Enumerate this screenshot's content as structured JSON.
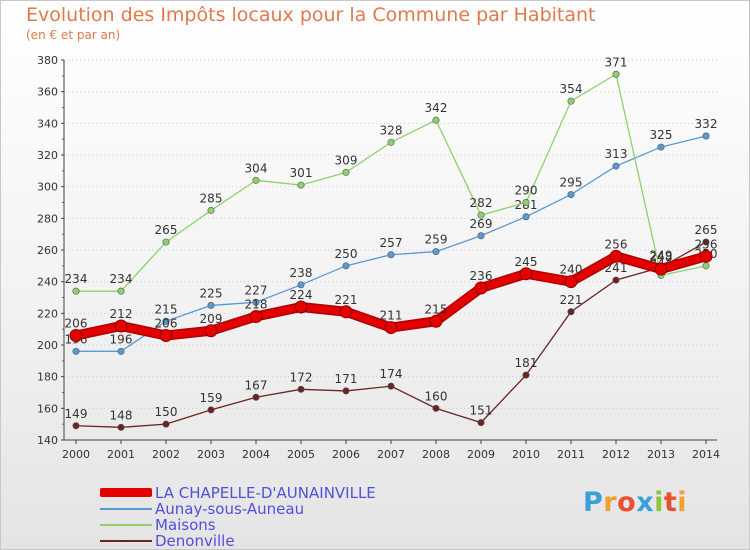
{
  "header": {
    "title": "Evolution des Impôts locaux pour la Commune par Habitant",
    "subtitle": "(en € et par an)"
  },
  "logo": {
    "text": "Proxiti"
  },
  "colors": {
    "title": "#e07a4c",
    "tick_label": "#333333",
    "grid": "#cccccc",
    "legend_text": "#5050d8"
  },
  "chart_data": {
    "type": "line",
    "x": [
      "2000",
      "2001",
      "2002",
      "2003",
      "2004",
      "2005",
      "2006",
      "2007",
      "2008",
      "2009",
      "2010",
      "2011",
      "2012",
      "2013",
      "2014"
    ],
    "ylim": [
      140,
      380
    ],
    "yticks": [
      140,
      160,
      180,
      200,
      220,
      240,
      260,
      280,
      300,
      320,
      340,
      360,
      380
    ],
    "grid": "horizontal dotted",
    "legend_position": "bottom-left",
    "series": [
      {
        "name": "LA CHAPELLE-D'AUNAINVILLE",
        "color": "#e30000",
        "values": [
          206,
          212,
          206,
          209,
          218,
          224,
          221,
          211,
          215,
          236,
          245,
          240,
          256,
          248,
          256
        ],
        "labels": [
          "206",
          "212",
          "206",
          "209",
          "218",
          "224",
          "221",
          "211",
          "215",
          "236",
          "245",
          "240",
          "256",
          "248",
          "256"
        ]
      },
      {
        "name": "Aunay-sous-Auneau",
        "color": "#5a9ad2",
        "values": [
          196,
          196,
          215,
          225,
          227,
          238,
          250,
          257,
          259,
          269,
          281,
          295,
          313,
          325,
          332
        ],
        "labels": [
          "196",
          "196",
          "215",
          "225",
          "227",
          "238",
          "250",
          "257",
          "259",
          "269",
          "281",
          "295",
          "313",
          "325",
          "332"
        ]
      },
      {
        "name": "Maisons",
        "color": "#8ed16c",
        "values": [
          234,
          234,
          265,
          285,
          304,
          301,
          309,
          328,
          342,
          282,
          290,
          354,
          371,
          244,
          250
        ],
        "labels": [
          "234",
          "234",
          "265",
          "285",
          "304",
          "301",
          "309",
          "328",
          "342",
          "282",
          "290",
          "354",
          "371",
          "244",
          "250"
        ]
      },
      {
        "name": "Denonville",
        "color": "#6b2424",
        "values": [
          149,
          148,
          150,
          159,
          167,
          172,
          171,
          174,
          160,
          151,
          181,
          221,
          241,
          249,
          265
        ],
        "labels": [
          "149",
          "148",
          "150",
          "159",
          "167",
          "172",
          "171",
          "174",
          "160",
          "151",
          "181",
          "221",
          "241",
          "249",
          "265"
        ]
      }
    ]
  }
}
